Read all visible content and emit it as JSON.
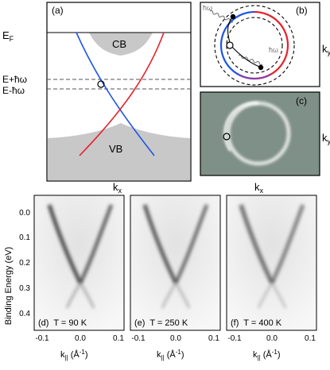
{
  "panels": {
    "a": {
      "label": "(a)",
      "levels": {
        "fermi": "E",
        "fermi_sub": "F",
        "upper": "E+ħω",
        "lower": "E-ħω"
      },
      "bands": {
        "conduction": "CB",
        "valence": "VB"
      },
      "axis_label": "k",
      "axis_sub": "x"
    },
    "b": {
      "label": "(b)",
      "photon_top": "ħω",
      "photon_right": "ħω",
      "axis_label": "k",
      "axis_sub": "y"
    },
    "c": {
      "label": "(c)",
      "axis_label": "k",
      "axis_sub": "y",
      "below_label": "k",
      "below_sub": "x"
    }
  },
  "arpes": {
    "ylabel": "Binding Energy (eV)",
    "yticks": [
      "0.0",
      "0.1",
      "0.2",
      "0.3",
      "0.4"
    ],
    "xticks": [
      "-0.1",
      "0.0",
      "0.1"
    ],
    "xlabel_main": "k",
    "xlabel_sub": "||",
    "xlabel_unit": " (Å",
    "xlabel_exp": "-1",
    "xlabel_close": ")",
    "panels": [
      {
        "label": "(d)  T = 90 K"
      },
      {
        "label": "(e)  T = 250 K"
      },
      {
        "label": "(f)  T = 400 K"
      }
    ]
  },
  "colors": {
    "cone_red": "#e8202a",
    "cone_blue": "#1f54e8",
    "band_gray": "#c8c8c8",
    "panel_c_bg": "#7f9088"
  }
}
